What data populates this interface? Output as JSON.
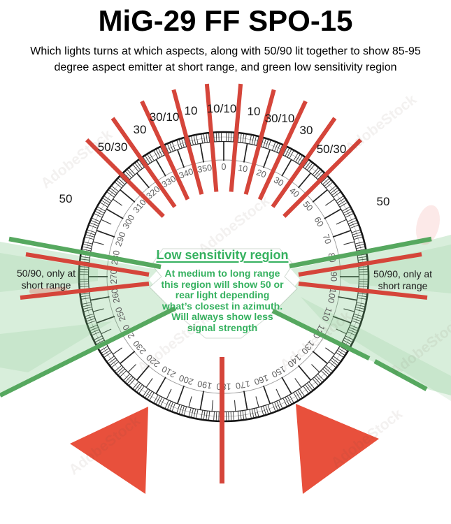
{
  "header": {
    "title": "MiG-29 FF SPO-15",
    "subtitle_lines": [
      "Which lights turns at which aspects, along with 50/90 lit together to show 85-95",
      "degree aspect emitter at short range, and green low sensitivity region"
    ]
  },
  "dial": {
    "degree_labels": [
      "0",
      "10",
      "20",
      "30",
      "40",
      "50",
      "60",
      "70",
      "80",
      "90",
      "100",
      "110",
      "120",
      "130",
      "140",
      "150",
      "160",
      "170",
      "180",
      "190",
      "200",
      "210",
      "220",
      "230",
      "240",
      "250",
      "260",
      "270",
      "280",
      "290",
      "300",
      "310",
      "320",
      "330",
      "340",
      "350"
    ]
  },
  "sectors": {
    "labels": [
      "50",
      "50/30",
      "30",
      "30/10",
      "10",
      "10/10",
      "10",
      "30/10",
      "30",
      "50/30",
      "50"
    ]
  },
  "side_notes": {
    "left": "50/90, only at short range",
    "right": "50/90, only at short range"
  },
  "center_note": {
    "title": "Low sensitivity region",
    "body_lines": [
      "At medium to long range",
      "this region will show 50 or",
      "rear light depending",
      "what’s closest in azimuth.",
      "Will always show less",
      "signal strength"
    ]
  },
  "watermark": "AdobeStock",
  "colors": {
    "red_line": "#d5453a",
    "red_solid": "#e8503c",
    "green_line": "#56a85f",
    "green_text": "#35b15f",
    "green_fill": "#6fbf7a",
    "dial_black": "#1a1a1a"
  }
}
